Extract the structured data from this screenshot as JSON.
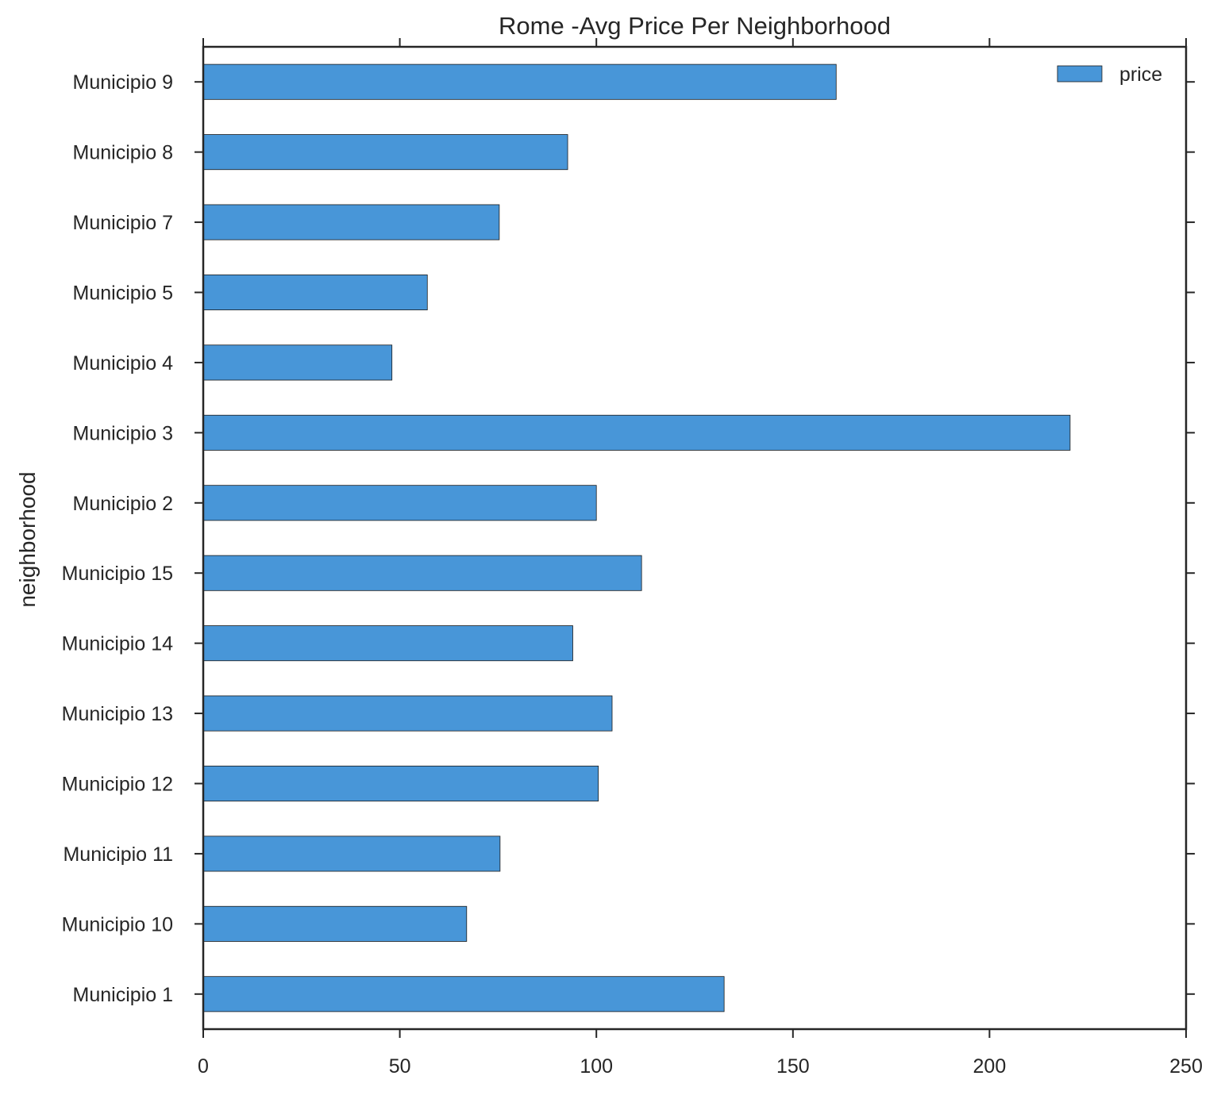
{
  "chart_data": {
    "type": "bar",
    "orientation": "horizontal",
    "title": "Rome -Avg Price Per Neighborhood",
    "xlabel": "",
    "ylabel": "neighborhood",
    "categories": [
      "Municipio 1",
      "Municipio 10",
      "Municipio 11",
      "Municipio 12",
      "Municipio 13",
      "Municipio 14",
      "Municipio 15",
      "Municipio 2",
      "Municipio 3",
      "Municipio 4",
      "Municipio 5",
      "Municipio 7",
      "Municipio 8",
      "Municipio 9"
    ],
    "series": [
      {
        "name": "price",
        "values": [
          132.5,
          67,
          75.5,
          100.5,
          104,
          94,
          111.5,
          100,
          220.5,
          48,
          57,
          75.3,
          92.7,
          161
        ]
      }
    ],
    "xlim": [
      0,
      250
    ],
    "xticks": [
      "0",
      "50",
      "100",
      "150",
      "200",
      "250"
    ],
    "grid": false,
    "legend_position": "top-right",
    "colors": {
      "bar": "#4896d8",
      "bar_edge": "#1a1a1a",
      "axis": "#262626"
    }
  }
}
